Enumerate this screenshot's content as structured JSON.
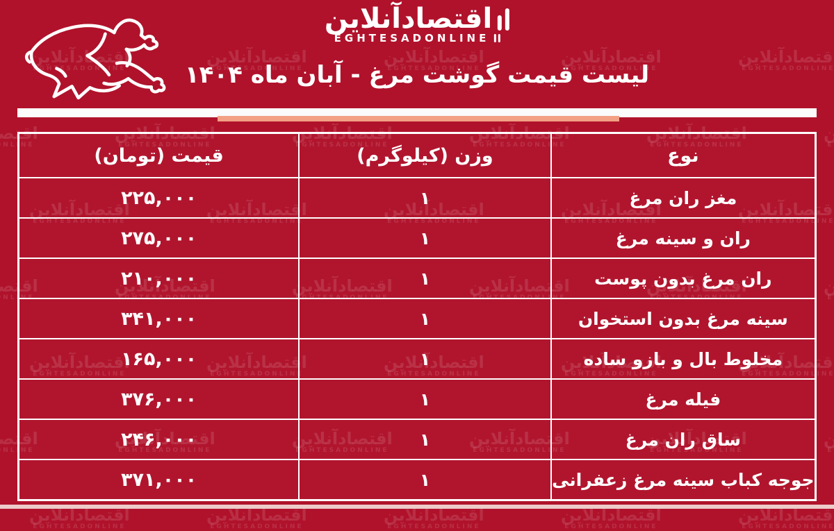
{
  "page": {
    "title": "لیست قیمت گوشت مرغ - آبان ماه ۱۴۰۴",
    "colors": {
      "background": "#b0122b",
      "accent_bar": "#f2a184",
      "table_border": "#ffffff",
      "text": "#ffffff",
      "bottom_strip": "#eccbc9"
    }
  },
  "brand": {
    "logo_fa": "اقتصادآنلاین",
    "logo_en": "EGHTESADONLINE"
  },
  "watermark": {
    "text_fa": "اقتصادآنلاین",
    "text_en": "EGHTESADONLINE"
  },
  "table": {
    "headers": {
      "type": "نوع",
      "weight": "وزن (کیلوگرم)",
      "price": "قیمت (تومان)"
    },
    "rows": [
      {
        "type": "مغز ران مرغ",
        "weight": "۱",
        "price": "۲۲۵,۰۰۰"
      },
      {
        "type": "ران و سینه مرغ",
        "weight": "۱",
        "price": "۲۷۵,۰۰۰"
      },
      {
        "type": "ران مرغ بدون پوست",
        "weight": "۱",
        "price": "۲۱۰,۰۰۰"
      },
      {
        "type": "سینه مرغ بدون استخوان",
        "weight": "۱",
        "price": "۳۴۱,۰۰۰"
      },
      {
        "type": "مخلوط بال و بازو ساده",
        "weight": "۱",
        "price": "۱۶۵,۰۰۰"
      },
      {
        "type": "فیله مرغ",
        "weight": "۱",
        "price": "۳۷۶,۰۰۰"
      },
      {
        "type": "ساق ران مرغ",
        "weight": "۱",
        "price": "۲۴۶,۰۰۰"
      },
      {
        "type": "جوجه کباب سینه مرغ زعفرانی",
        "weight": "۱",
        "price": "۳۷۱,۰۰۰"
      }
    ]
  }
}
